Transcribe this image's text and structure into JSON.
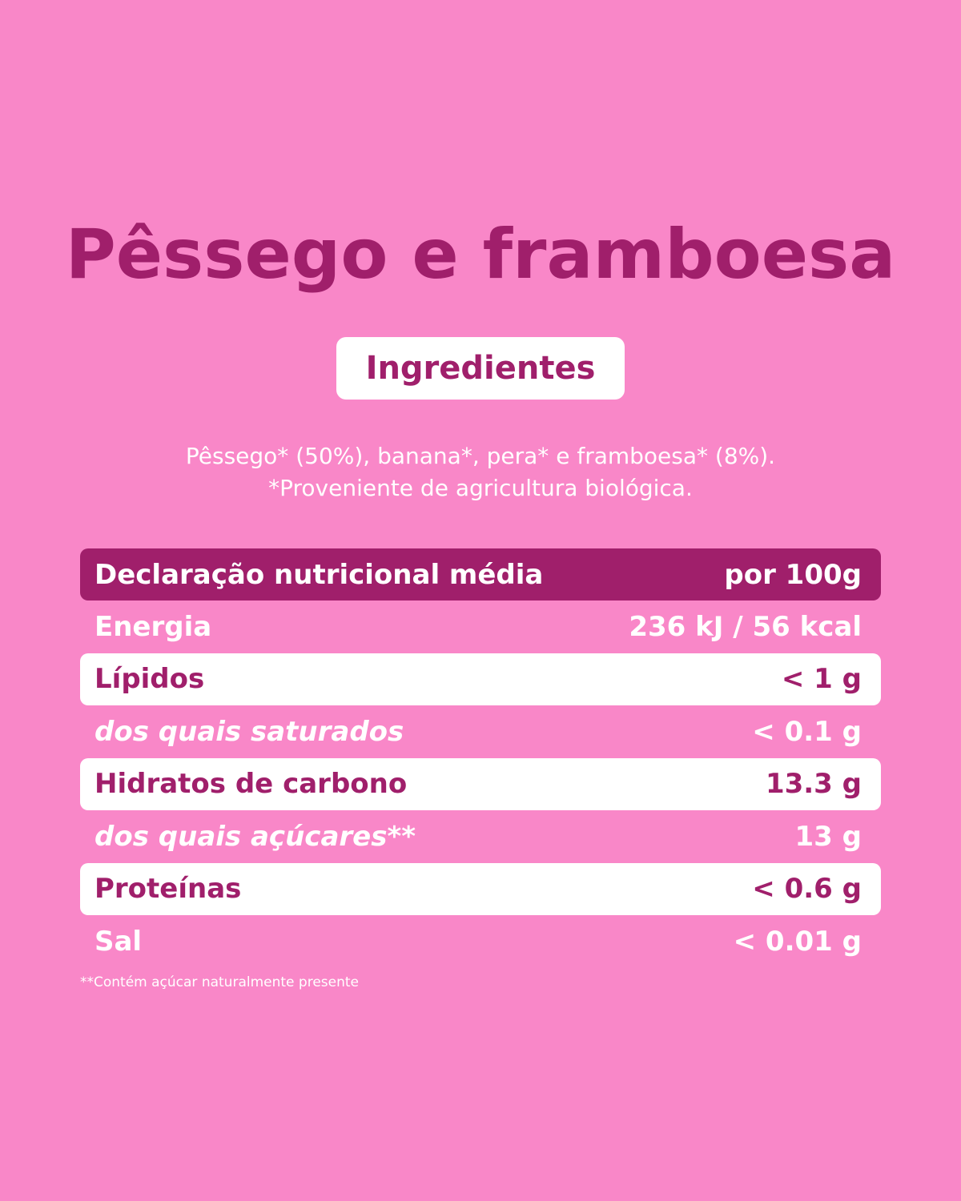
{
  "title": "Pêssego e framboesa",
  "ingredients": {
    "heading": "Ingredientes",
    "lines": [
      "Pêssego* (50%), banana*, pera* e framboesa* (8%).",
      "*Proveniente de agricultura biológica."
    ]
  },
  "table": {
    "header": [
      "Declaração nutricional média",
      "por 100g"
    ],
    "rows": [
      [
        "Energia",
        "236 kJ / 56 kcal"
      ],
      [
        "Lípidos",
        "< 1 g"
      ],
      [
        "dos quais saturados",
        "< 0.1 g"
      ],
      [
        "Hidratos de carbono",
        "13.3 g"
      ],
      [
        "dos quais açúcares**",
        "13 g"
      ],
      [
        "Proteínas",
        "< 0.6 g"
      ],
      [
        "Sal",
        "< 0.01 g"
      ]
    ]
  },
  "footnote": "**Contém açúcar naturalmente presente"
}
